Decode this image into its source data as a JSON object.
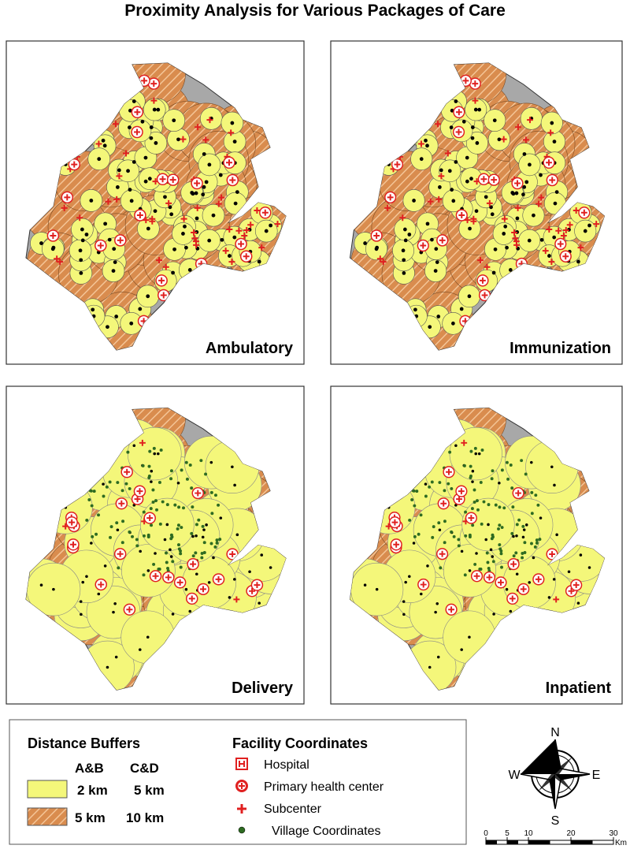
{
  "title": "Proximity Analysis for Various Packages of Care",
  "panels": [
    {
      "label": "Ambulatory"
    },
    {
      "label": "Immunization"
    },
    {
      "label": "Delivery"
    },
    {
      "label": "Inpatient"
    }
  ],
  "legend": {
    "buffers": {
      "title": "Distance Buffers",
      "columns": [
        "A&B",
        "C&D"
      ],
      "rows": [
        [
          "2 km",
          "5 km"
        ],
        [
          "5 km",
          "10 km"
        ]
      ]
    },
    "facilities": {
      "title": "Facility Coordinates",
      "items": [
        "Hospital",
        "Primary health center",
        "Subcenter",
        "Village Coordinates"
      ]
    }
  },
  "compass": [
    "N",
    "E",
    "S",
    "W"
  ],
  "scale_bar": {
    "ticks": [
      0,
      5,
      10,
      20,
      30
    ],
    "unit": "Km"
  }
}
